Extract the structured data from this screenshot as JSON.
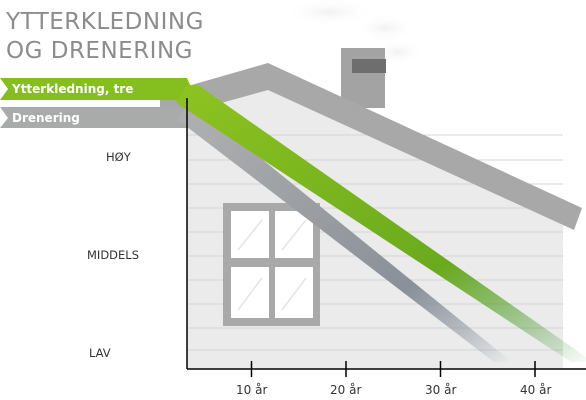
{
  "title": {
    "line1": "YTTERKLEDNING",
    "line2": "OG DRENERING"
  },
  "chart_data": {
    "type": "line",
    "title": "YTTERKLEDNING OG DRENERING",
    "x": [
      0,
      45
    ],
    "x_ticks": [
      10,
      20,
      30,
      40
    ],
    "x_tick_labels": [
      "10 år",
      "20 år",
      "30 år",
      "40 år"
    ],
    "y_tick_labels": [
      "HØY",
      "MIDDELS",
      "LAV"
    ],
    "xlim": [
      0,
      45
    ],
    "ylim": [
      0,
      1
    ],
    "series": [
      {
        "name": "Ytterkledning, tre",
        "x": [
          0,
          45
        ],
        "values": [
          1.0,
          0.0
        ]
      },
      {
        "name": "Drenering",
        "x": [
          0,
          36
        ],
        "values": [
          0.93,
          0.0
        ]
      }
    ],
    "legend_position": "top-left",
    "grid": false
  },
  "colors": {
    "series_1": "#84bf1f",
    "series_2": "#a9aaaa",
    "house_wall": "#ececec",
    "roof": "#a6a6a6",
    "axis": "#000000"
  }
}
